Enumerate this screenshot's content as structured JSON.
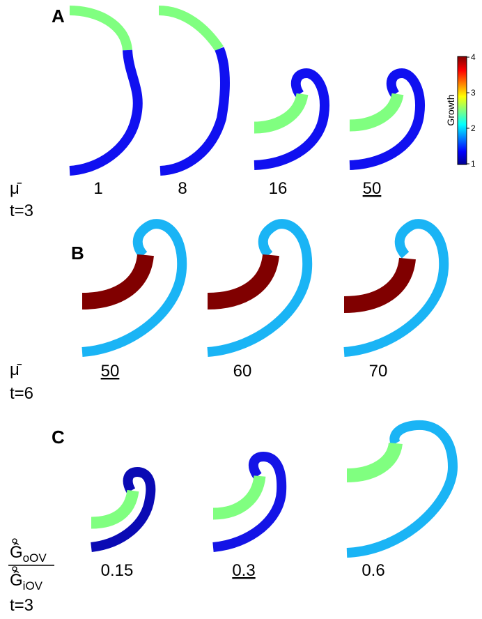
{
  "panels": [
    {
      "label": "A",
      "parameter": "μ̄",
      "time": "t=3",
      "values": [
        "1",
        "8",
        "16",
        "50"
      ]
    },
    {
      "label": "B",
      "parameter": "μ̄",
      "time": "t=6",
      "values": [
        "50",
        "60",
        "70"
      ]
    },
    {
      "label": "C",
      "parameter": {
        "symbol": "Ĝ",
        "numerator_subscript": "oOV",
        "denominator_subscript": "iOV"
      },
      "time": "t=3",
      "values": [
        "0.15",
        "0.3",
        "0.6"
      ]
    }
  ],
  "colorbar": {
    "title": "Growth",
    "range": [
      1,
      4
    ],
    "ticks": [
      1,
      2,
      3,
      4
    ]
  }
}
